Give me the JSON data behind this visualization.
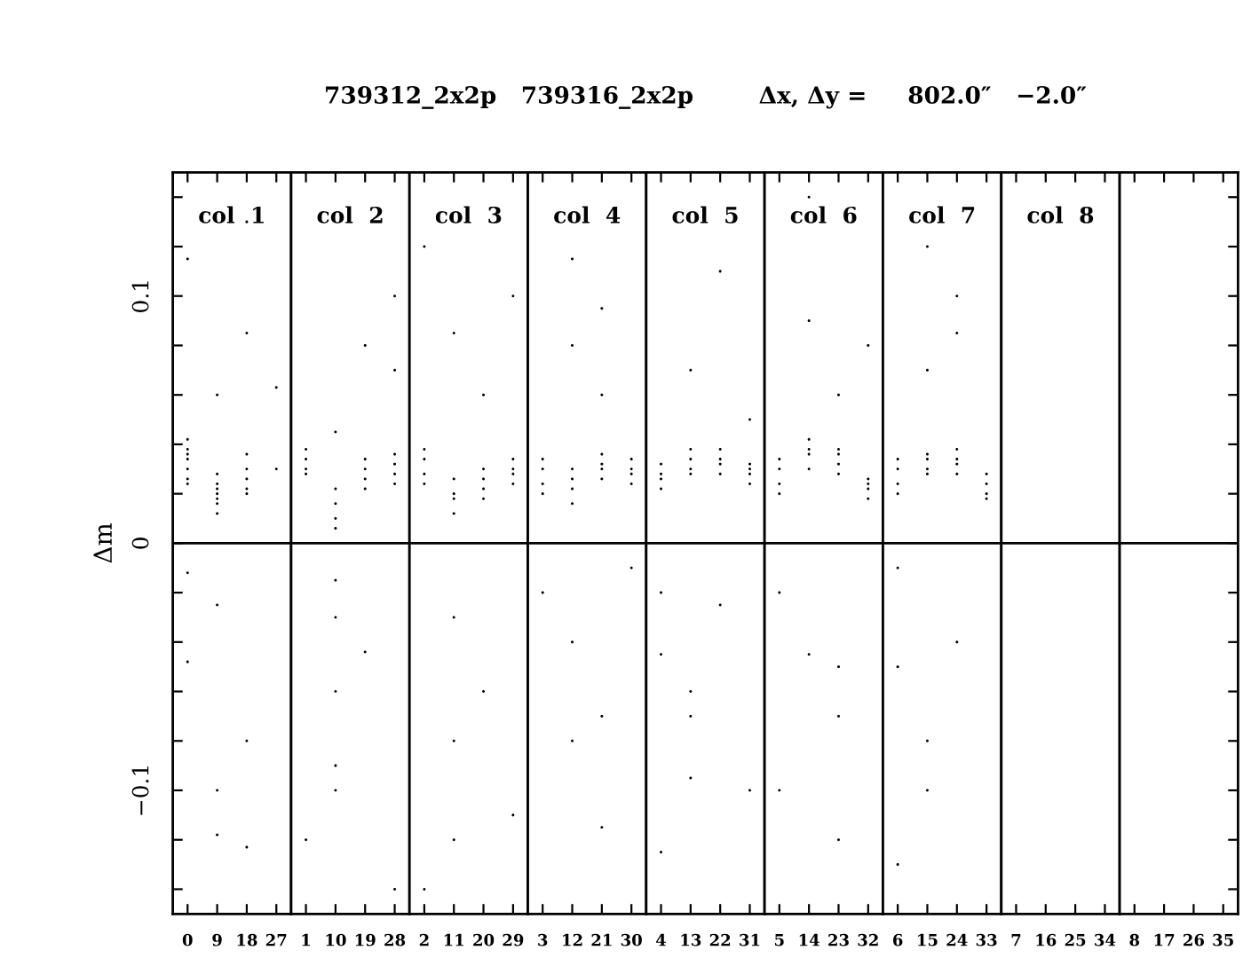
{
  "chart_data": [
    {
      "type": "scatter",
      "ylabel": "Δm",
      "annotations": [
        "col  1"
      ],
      "categories": [
        "0",
        "9",
        "18",
        "27"
      ],
      "ylim": [
        -0.15,
        0.15
      ],
      "yticks": [
        {
          "value": -0.14,
          "label": null
        },
        {
          "value": -0.12,
          "label": null
        },
        {
          "value": -0.1,
          "label": "−0.1"
        },
        {
          "value": -0.08,
          "label": null
        },
        {
          "value": -0.06,
          "label": null
        },
        {
          "value": -0.04,
          "label": null
        },
        {
          "value": -0.02,
          "label": null
        },
        0,
        {
          "value": 0.02,
          "label": null
        },
        {
          "value": 0.04,
          "label": null
        },
        {
          "value": 0.06,
          "label": null
        },
        {
          "value": 0.08,
          "label": null
        },
        {
          "value": 0.1,
          "label": "0.1"
        },
        {
          "value": 0.12,
          "label": null
        },
        {
          "value": 0.14,
          "label": null
        }
      ],
      "marker": "circle",
      "ref_lines": [
        {
          "axis": "y",
          "value": 0,
          "color": "#000000"
        }
      ],
      "series": [
        {
          "color": "#000000",
          "x": [
            "0",
            "0",
            "0",
            "0",
            "0",
            "0",
            "0",
            "9",
            "9",
            "9",
            "9",
            "9",
            "9",
            "9",
            "18",
            "18",
            "18",
            "18",
            "18",
            "27",
            "0",
            "18",
            "9",
            "18",
            "0",
            "9",
            "18",
            "9",
            "9",
            "18",
            "0",
            "27"
          ],
          "values": [
            0.036,
            0.03,
            0.042,
            0.026,
            0.024,
            0.034,
            0.038,
            0.022,
            0.016,
            0.02,
            0.024,
            0.012,
            0.028,
            0.018,
            0.03,
            0.026,
            0.036,
            0.022,
            0.02,
            0.03,
            0.115,
            0.13,
            0.06,
            0.085,
            -0.048,
            -0.025,
            -0.08,
            -0.1,
            -0.118,
            -0.123,
            -0.012,
            0.063
          ]
        }
      ]
    },
    {
      "type": "scatter",
      "annotations": [
        "col  2"
      ],
      "categories": [
        "1",
        "10",
        "19",
        "28"
      ],
      "ylim": [
        -0.15,
        0.15
      ],
      "tick_labels": "x",
      "marker": "circle",
      "ref_lines": [
        {
          "axis": "y",
          "value": 0,
          "color": "#000000"
        }
      ],
      "series": [
        {
          "color": "#000000",
          "x": [
            "1",
            "1",
            "1",
            "1",
            "10",
            "10",
            "10",
            "10",
            "19",
            "19",
            "19",
            "19",
            "28",
            "28",
            "28",
            "28",
            "10",
            "10",
            "10",
            "10",
            "10",
            "28",
            "28",
            "19",
            "10",
            "1",
            "19",
            "28"
          ],
          "values": [
            0.034,
            0.028,
            0.038,
            0.03,
            0.016,
            0.01,
            0.022,
            0.006,
            0.03,
            0.022,
            0.034,
            0.026,
            0.028,
            0.036,
            0.032,
            0.024,
            -0.015,
            -0.03,
            -0.06,
            -0.09,
            -0.1,
            0.1,
            0.07,
            0.08,
            0.045,
            -0.12,
            -0.044,
            -0.14
          ]
        }
      ]
    },
    {
      "type": "scatter",
      "annotations": [
        "col  3"
      ],
      "categories": [
        "2",
        "11",
        "20",
        "29"
      ],
      "ylim": [
        -0.15,
        0.15
      ],
      "tick_labels": "x",
      "marker": "circle",
      "ref_lines": [
        {
          "axis": "y",
          "value": 0,
          "color": "#000000"
        }
      ],
      "series": [
        {
          "color": "#000000",
          "x": [
            "2",
            "2",
            "2",
            "2",
            "11",
            "11",
            "11",
            "11",
            "20",
            "20",
            "20",
            "20",
            "29",
            "29",
            "29",
            "29",
            "2",
            "11",
            "20",
            "29",
            "11",
            "11",
            "20",
            "2",
            "29",
            "11"
          ],
          "values": [
            0.034,
            0.028,
            0.024,
            0.038,
            0.02,
            0.012,
            0.018,
            0.026,
            0.022,
            0.03,
            0.018,
            0.026,
            0.03,
            0.024,
            0.034,
            0.028,
            0.12,
            0.085,
            0.06,
            0.1,
            -0.03,
            -0.08,
            -0.06,
            -0.14,
            -0.11,
            -0.12
          ]
        }
      ]
    },
    {
      "type": "scatter",
      "annotations": [
        "col  4"
      ],
      "categories": [
        "3",
        "12",
        "21",
        "30"
      ],
      "ylim": [
        -0.15,
        0.15
      ],
      "tick_labels": "x",
      "marker": "circle",
      "ref_lines": [
        {
          "axis": "y",
          "value": 0,
          "color": "#000000"
        }
      ],
      "series": [
        {
          "color": "#000000",
          "x": [
            "3",
            "3",
            "3",
            "3",
            "12",
            "12",
            "12",
            "12",
            "21",
            "21",
            "21",
            "21",
            "30",
            "30",
            "30",
            "30",
            "12",
            "21",
            "12",
            "21",
            "3",
            "12",
            "21",
            "30",
            "12",
            "21"
          ],
          "values": [
            0.03,
            0.024,
            0.034,
            0.02,
            0.022,
            0.016,
            0.026,
            0.03,
            0.03,
            0.036,
            0.026,
            0.032,
            0.028,
            0.034,
            0.024,
            0.03,
            0.115,
            0.095,
            0.08,
            0.06,
            -0.02,
            -0.04,
            -0.07,
            -0.01,
            -0.08,
            -0.115
          ]
        }
      ]
    },
    {
      "type": "scatter",
      "title": "739312_2x2p   739316_2x2p        Δx, Δy =     802.0″   −2.0″",
      "annotations": [
        "col  5"
      ],
      "categories": [
        "4",
        "13",
        "22",
        "31"
      ],
      "ylim": [
        -0.15,
        0.15
      ],
      "tick_labels": "x",
      "marker": "circle",
      "ref_lines": [
        {
          "axis": "y",
          "value": 0,
          "color": "#000000"
        }
      ],
      "series": [
        {
          "color": "#000000",
          "x": [
            "4",
            "4",
            "4",
            "4",
            "13",
            "13",
            "13",
            "13",
            "22",
            "22",
            "22",
            "22",
            "31",
            "31",
            "31",
            "31",
            "13",
            "22",
            "31",
            "4",
            "4",
            "13",
            "22",
            "13",
            "31",
            "4",
            "13"
          ],
          "values": [
            0.028,
            0.022,
            0.032,
            0.026,
            0.034,
            0.038,
            0.028,
            0.03,
            0.032,
            0.038,
            0.028,
            0.034,
            0.028,
            0.032,
            0.024,
            0.03,
            0.07,
            0.11,
            0.05,
            -0.02,
            -0.045,
            -0.07,
            -0.025,
            -0.095,
            -0.1,
            -0.125,
            -0.06
          ]
        }
      ]
    },
    {
      "type": "scatter",
      "annotations": [
        "col  6"
      ],
      "categories": [
        "5",
        "14",
        "23",
        "32"
      ],
      "ylim": [
        -0.15,
        0.15
      ],
      "tick_labels": "x",
      "marker": "circle",
      "ref_lines": [
        {
          "axis": "y",
          "value": 0,
          "color": "#000000"
        }
      ],
      "series": [
        {
          "color": "#000000",
          "x": [
            "5",
            "5",
            "5",
            "5",
            "14",
            "14",
            "14",
            "14",
            "23",
            "23",
            "23",
            "23",
            "32",
            "32",
            "32",
            "32",
            "14",
            "23",
            "32",
            "14",
            "5",
            "23",
            "23",
            "14",
            "5",
            "23"
          ],
          "values": [
            0.03,
            0.024,
            0.034,
            0.02,
            0.036,
            0.042,
            0.03,
            0.038,
            0.032,
            0.038,
            0.028,
            0.036,
            0.022,
            0.018,
            0.026,
            0.024,
            0.09,
            0.06,
            0.08,
            0.14,
            -0.02,
            -0.05,
            -0.07,
            -0.045,
            -0.1,
            -0.12
          ]
        }
      ]
    },
    {
      "type": "scatter",
      "annotations": [
        "col  7"
      ],
      "categories": [
        "6",
        "15",
        "24",
        "33"
      ],
      "ylim": [
        -0.15,
        0.15
      ],
      "tick_labels": "x",
      "marker": "circle",
      "ref_lines": [
        {
          "axis": "y",
          "value": 0,
          "color": "#000000"
        }
      ],
      "series": [
        {
          "color": "#000000",
          "x": [
            "6",
            "6",
            "6",
            "6",
            "15",
            "15",
            "15",
            "15",
            "24",
            "24",
            "24",
            "24",
            "33",
            "33",
            "33",
            "33",
            "15",
            "24",
            "15",
            "24",
            "6",
            "6",
            "15",
            "24",
            "15",
            "6"
          ],
          "values": [
            0.03,
            0.024,
            0.034,
            0.02,
            0.034,
            0.028,
            0.036,
            0.03,
            0.032,
            0.038,
            0.028,
            0.034,
            0.024,
            0.02,
            0.028,
            0.018,
            0.12,
            0.085,
            0.07,
            0.1,
            -0.01,
            -0.05,
            -0.08,
            -0.04,
            -0.1,
            -0.13
          ]
        }
      ]
    },
    {
      "type": "scatter",
      "annotations": [
        "col  8"
      ],
      "categories": [
        "7",
        "16",
        "25",
        "34"
      ],
      "ylim": [
        -0.15,
        0.15
      ],
      "tick_labels": "x",
      "ref_lines": [
        {
          "axis": "y",
          "value": 0,
          "color": "#000000"
        }
      ]
    },
    {
      "type": "scatter",
      "categories": [
        "8",
        "17",
        "26",
        "35"
      ],
      "ylim": [
        -0.15,
        0.15
      ],
      "tick_labels": "x",
      "ref_lines": [
        {
          "axis": "y",
          "value": 0,
          "color": "#000000"
        }
      ],
      "yticks": [
        {
          "value": -0.14,
          "label": null
        },
        {
          "value": -0.12,
          "label": null
        },
        {
          "value": -0.1,
          "label": null
        },
        {
          "value": -0.08,
          "label": null
        },
        {
          "value": -0.06,
          "label": null
        },
        {
          "value": -0.04,
          "label": null
        },
        {
          "value": -0.02,
          "label": null
        },
        {
          "value": 0,
          "label": null
        },
        {
          "value": 0.02,
          "label": null
        },
        {
          "value": 0.04,
          "label": null
        },
        {
          "value": 0.06,
          "label": null
        },
        {
          "value": 0.08,
          "label": null
        },
        {
          "value": 0.1,
          "label": null
        },
        {
          "value": 0.12,
          "label": null
        },
        {
          "value": 0.14,
          "label": null
        }
      ]
    }
  ]
}
